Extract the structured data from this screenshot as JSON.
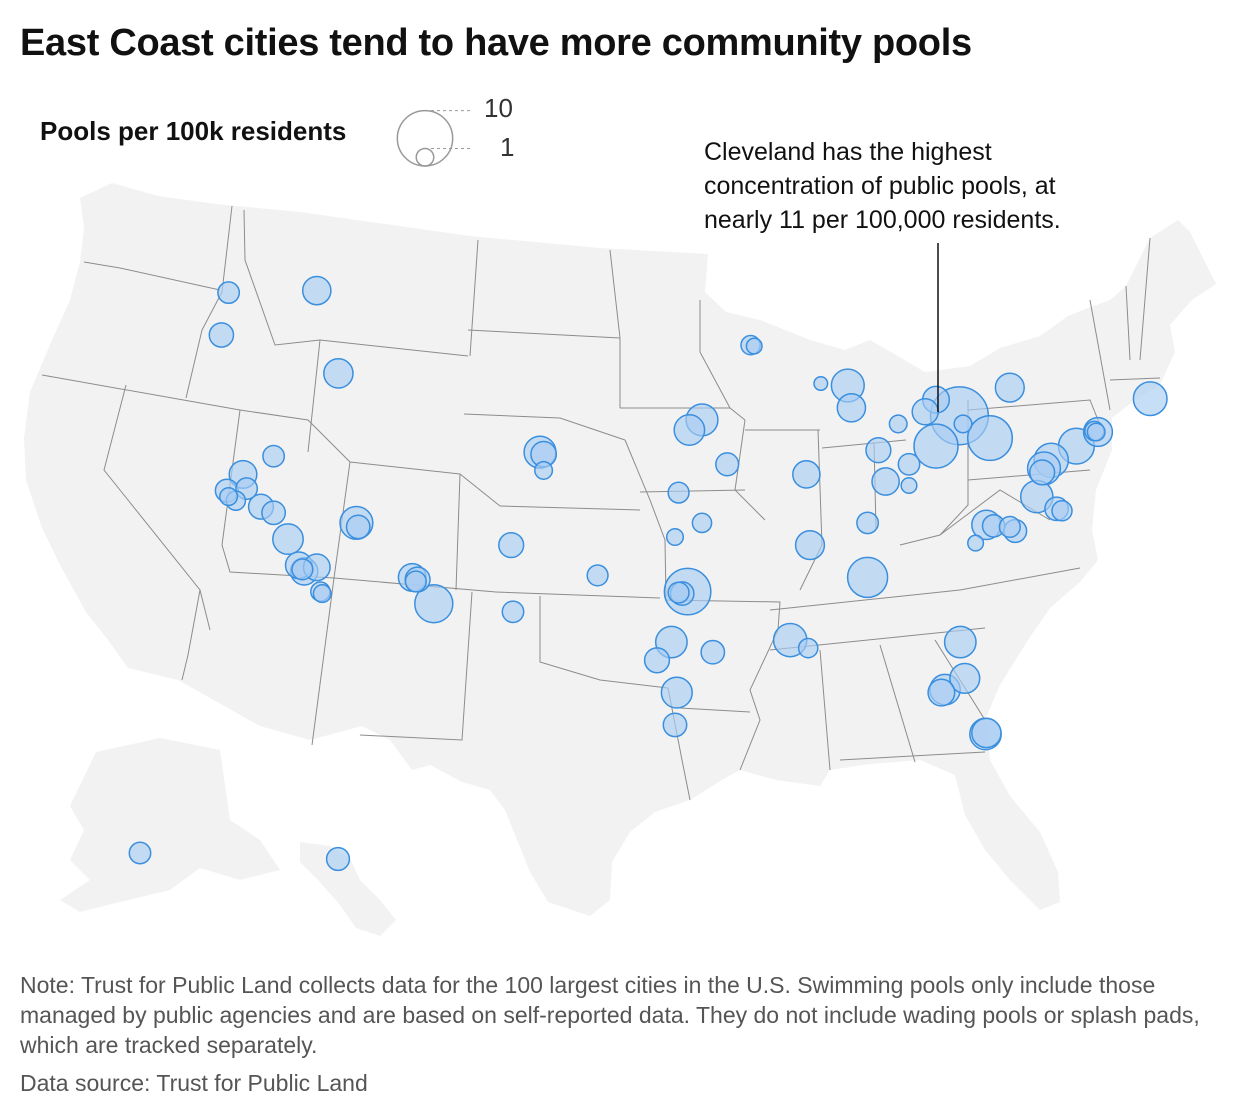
{
  "title": "East Coast cities tend to have more community pools",
  "legend": {
    "title": "Pools per 100k residents",
    "max_label": "10",
    "min_label": "1",
    "max_value": 10,
    "min_value": 1
  },
  "annotation": "Cleveland has the highest concentration of public pools, at nearly 11 per 100,000 residents.",
  "note": "Note: Trust for Public Land collects data for the 100 largest cities in the U.S. Swimming pools only include those managed by public agencies and are based on self-reported data. They do not include wading pools or splash pads, which are tracked separately.",
  "source": "Data source: Trust for Public Land",
  "colors": {
    "land": "#f2f2f2",
    "border": "#8c8c8c",
    "bubble_fill": "#a9cdf2",
    "bubble_stroke": "#3a8fde"
  },
  "chart_data": {
    "type": "scatter",
    "size_encoding": "Pools per 100k residents",
    "points": [
      {
        "lon": -122.3,
        "lat": 47.6,
        "value": 1.5
      },
      {
        "lon": -117.4,
        "lat": 47.7,
        "value": 2.6
      },
      {
        "lon": -122.7,
        "lat": 45.5,
        "value": 1.9
      },
      {
        "lon": -116.2,
        "lat": 43.6,
        "value": 2.8
      },
      {
        "lon": -119.8,
        "lat": 39.5,
        "value": 1.5
      },
      {
        "lon": -121.5,
        "lat": 38.6,
        "value": 2.5
      },
      {
        "lon": -122.4,
        "lat": 37.8,
        "value": 1.7
      },
      {
        "lon": -122.3,
        "lat": 37.5,
        "value": 1.0
      },
      {
        "lon": -121.9,
        "lat": 37.3,
        "value": 1.2
      },
      {
        "lon": -121.3,
        "lat": 37.9,
        "value": 1.5
      },
      {
        "lon": -120.5,
        "lat": 37.0,
        "value": 2.0
      },
      {
        "lon": -119.8,
        "lat": 36.7,
        "value": 1.8
      },
      {
        "lon": -119.0,
        "lat": 35.4,
        "value": 3.0
      },
      {
        "lon": -118.4,
        "lat": 34.1,
        "value": 2.3
      },
      {
        "lon": -118.2,
        "lat": 33.9,
        "value": 1.4
      },
      {
        "lon": -118.1,
        "lat": 33.8,
        "value": 2.4
      },
      {
        "lon": -117.4,
        "lat": 34.0,
        "value": 2.3
      },
      {
        "lon": -117.2,
        "lat": 32.8,
        "value": 1.2
      },
      {
        "lon": -117.1,
        "lat": 32.7,
        "value": 1.0
      },
      {
        "lon": -115.2,
        "lat": 36.2,
        "value": 3.5
      },
      {
        "lon": -115.1,
        "lat": 36.0,
        "value": 1.8
      },
      {
        "lon": -112.1,
        "lat": 33.5,
        "value": 2.5
      },
      {
        "lon": -111.8,
        "lat": 33.4,
        "value": 2.0
      },
      {
        "lon": -111.9,
        "lat": 33.3,
        "value": 1.4
      },
      {
        "lon": -110.9,
        "lat": 32.2,
        "value": 4.7
      },
      {
        "lon": -105.0,
        "lat": 39.7,
        "value": 3.3
      },
      {
        "lon": -104.8,
        "lat": 39.6,
        "value": 2.1
      },
      {
        "lon": -104.8,
        "lat": 38.8,
        "value": 1.0
      },
      {
        "lon": -106.6,
        "lat": 35.1,
        "value": 2.0
      },
      {
        "lon": -106.5,
        "lat": 31.8,
        "value": 1.5
      },
      {
        "lon": -101.8,
        "lat": 33.6,
        "value": 1.4
      },
      {
        "lon": -96.8,
        "lat": 32.8,
        "value": 7.0
      },
      {
        "lon": -97.1,
        "lat": 32.7,
        "value": 1.8
      },
      {
        "lon": -97.3,
        "lat": 32.75,
        "value": 1.4
      },
      {
        "lon": -97.7,
        "lat": 30.3,
        "value": 3.2
      },
      {
        "lon": -98.5,
        "lat": 29.4,
        "value": 2.0
      },
      {
        "lon": -95.4,
        "lat": 29.8,
        "value": 1.8
      },
      {
        "lon": -97.4,
        "lat": 27.8,
        "value": 3.1
      },
      {
        "lon": -97.5,
        "lat": 26.2,
        "value": 1.8
      },
      {
        "lon": -97.5,
        "lat": 35.5,
        "value": 0.9
      },
      {
        "lon": -96.0,
        "lat": 36.2,
        "value": 1.2
      },
      {
        "lon": -97.3,
        "lat": 37.7,
        "value": 1.4
      },
      {
        "lon": -96.0,
        "lat": 41.3,
        "value": 3.3
      },
      {
        "lon": -96.7,
        "lat": 40.8,
        "value": 3.0
      },
      {
        "lon": -94.6,
        "lat": 39.1,
        "value": 1.7
      },
      {
        "lon": -93.3,
        "lat": 45.0,
        "value": 1.2
      },
      {
        "lon": -93.1,
        "lat": 44.95,
        "value": 0.8
      },
      {
        "lon": -89.4,
        "lat": 43.1,
        "value": 0.6
      },
      {
        "lon": -87.9,
        "lat": 43.0,
        "value": 3.5
      },
      {
        "lon": -87.7,
        "lat": 41.9,
        "value": 2.6
      },
      {
        "lon": -90.2,
        "lat": 38.6,
        "value": 2.4
      },
      {
        "lon": -85.1,
        "lat": 41.1,
        "value": 1.0
      },
      {
        "lon": -86.2,
        "lat": 39.8,
        "value": 2.0
      },
      {
        "lon": -83.0,
        "lat": 42.3,
        "value": 2.3
      },
      {
        "lon": -83.6,
        "lat": 41.7,
        "value": 2.2
      },
      {
        "lon": -81.7,
        "lat": 41.5,
        "value": 10.9
      },
      {
        "lon": -80.0,
        "lat": 40.4,
        "value": 6.5
      },
      {
        "lon": -81.5,
        "lat": 41.1,
        "value": 1.0
      },
      {
        "lon": -83.0,
        "lat": 40.0,
        "value": 6.3
      },
      {
        "lon": -84.5,
        "lat": 39.1,
        "value": 1.5
      },
      {
        "lon": -84.5,
        "lat": 38.05,
        "value": 0.8
      },
      {
        "lon": -85.8,
        "lat": 38.25,
        "value": 2.4
      },
      {
        "lon": -86.8,
        "lat": 36.2,
        "value": 1.5
      },
      {
        "lon": -90.0,
        "lat": 35.1,
        "value": 2.7
      },
      {
        "lon": -86.8,
        "lat": 33.5,
        "value": 5.2
      },
      {
        "lon": -90.1,
        "lat": 30.0,
        "value": 1.2
      },
      {
        "lon": -91.1,
        "lat": 30.4,
        "value": 3.6
      },
      {
        "lon": -78.9,
        "lat": 42.9,
        "value": 2.7
      },
      {
        "lon": -74.0,
        "lat": 40.7,
        "value": 2.7
      },
      {
        "lon": -74.2,
        "lat": 40.75,
        "value": 1.2
      },
      {
        "lon": -74.1,
        "lat": 40.7,
        "value": 1.0
      },
      {
        "lon": -71.1,
        "lat": 42.35,
        "value": 3.7
      },
      {
        "lon": -75.2,
        "lat": 40.0,
        "value": 4.2
      },
      {
        "lon": -76.6,
        "lat": 39.3,
        "value": 3.8
      },
      {
        "lon": -77.0,
        "lat": 38.9,
        "value": 3.5
      },
      {
        "lon": -77.1,
        "lat": 38.7,
        "value": 2.0
      },
      {
        "lon": -77.4,
        "lat": 37.5,
        "value": 3.4
      },
      {
        "lon": -76.3,
        "lat": 36.9,
        "value": 1.8
      },
      {
        "lon": -76.0,
        "lat": 36.8,
        "value": 1.3
      },
      {
        "lon": -80.2,
        "lat": 36.1,
        "value": 2.8
      },
      {
        "lon": -79.8,
        "lat": 36.05,
        "value": 1.6
      },
      {
        "lon": -78.6,
        "lat": 35.8,
        "value": 1.7
      },
      {
        "lon": -78.9,
        "lat": 36.0,
        "value": 1.4
      },
      {
        "lon": -80.8,
        "lat": 35.2,
        "value": 0.8
      },
      {
        "lon": -81.65,
        "lat": 30.3,
        "value": 3.2
      },
      {
        "lon": -81.4,
        "lat": 28.5,
        "value": 2.9
      },
      {
        "lon": -82.5,
        "lat": 27.95,
        "value": 3.0
      },
      {
        "lon": -82.7,
        "lat": 27.8,
        "value": 2.3
      },
      {
        "lon": -80.2,
        "lat": 25.8,
        "value": 2.8
      },
      {
        "lon": -80.25,
        "lat": 25.75,
        "value": 3.2
      },
      {
        "lon": -149.9,
        "lat": 61.2,
        "value": 1.5
      },
      {
        "lon": -157.9,
        "lat": 21.3,
        "value": 1.7
      }
    ]
  }
}
